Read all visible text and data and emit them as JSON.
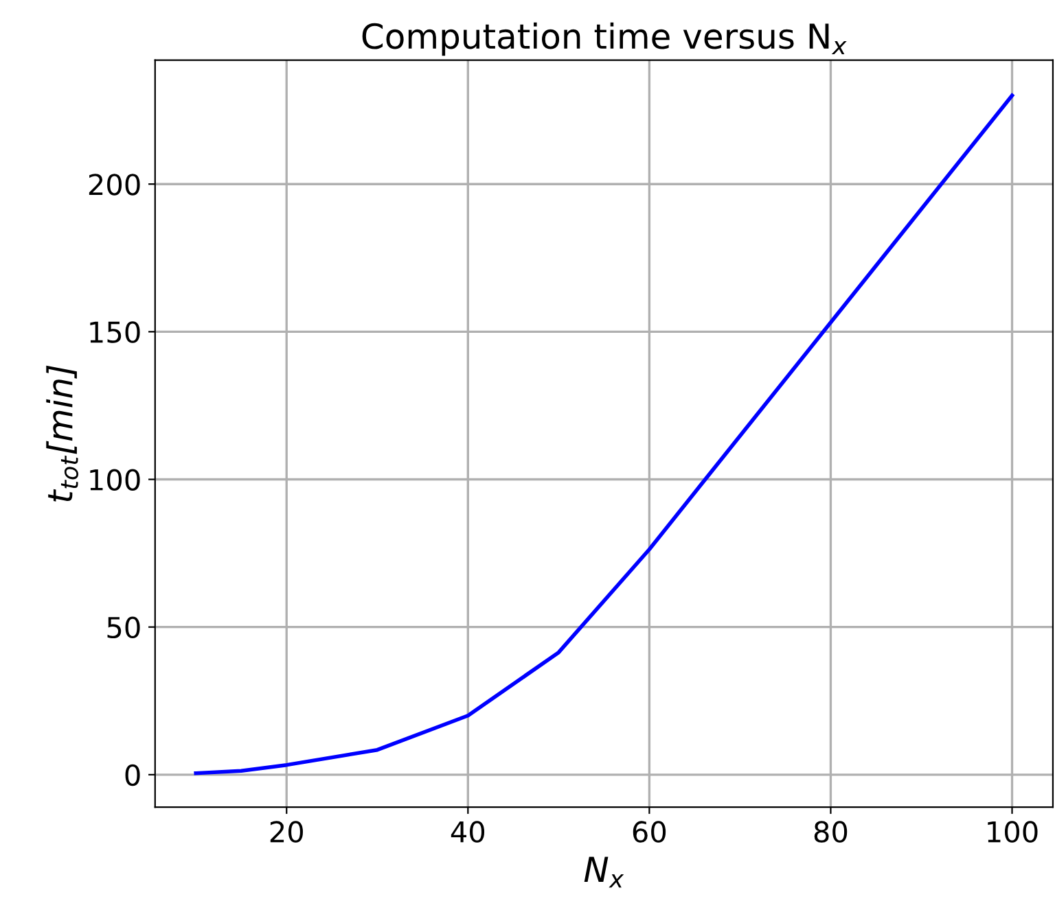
{
  "chart_data": {
    "type": "line",
    "title": "Computation time versus N$_{x}$",
    "xlabel": "N$_{x}$",
    "ylabel": "t$_{tot}$[min]",
    "x": [
      10,
      15,
      20,
      30,
      40,
      50,
      60,
      100
    ],
    "series": [
      {
        "color": "#0000ff",
        "values": [
          0.5,
          1.3,
          3.3,
          8.4,
          20,
          41.4,
          76.3,
          230
        ]
      }
    ],
    "xlim": [
      5.5,
      104.5
    ],
    "ylim": [
      -11,
      242
    ],
    "xticks": [
      20,
      40,
      60,
      80,
      100
    ],
    "yticks": [
      0,
      50,
      100,
      150,
      200
    ],
    "grid": true,
    "legend": false,
    "marker": "none",
    "line_style": "solid"
  }
}
